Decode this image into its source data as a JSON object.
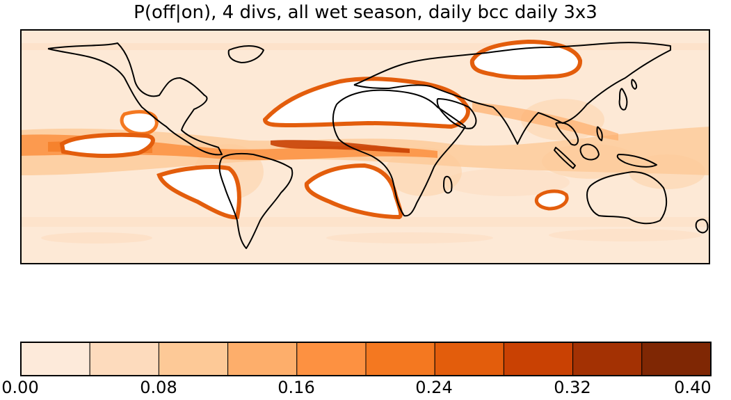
{
  "title": "P(off|on), 4 divs, all wet season, daily bcc daily 3x3",
  "colorbar": {
    "ticks": [
      "0.00",
      "0.08",
      "0.16",
      "0.24",
      "0.32",
      "0.40"
    ],
    "range": [
      0.0,
      0.4
    ],
    "colors": [
      "#fdeada",
      "#fddbbd",
      "#fdc997",
      "#fdae6b",
      "#fd9141",
      "#f47820",
      "#e35d0c",
      "#c94103",
      "#a33103",
      "#7f2704"
    ]
  },
  "map": {
    "background": "#fde9d6",
    "masked_color": "#ffffff",
    "outline_color": "#000000"
  }
}
